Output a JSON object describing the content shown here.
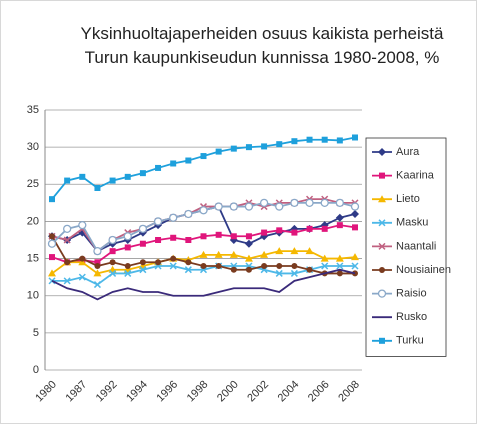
{
  "chart_data": {
    "type": "line",
    "title": "Yksinhuoltajaperheiden osuus kaikista perheistä Turun kaupunkiseudun kunnissa 1980-2008, %",
    "categories": [
      "1980",
      null,
      "1987",
      null,
      "1992",
      null,
      "1994",
      null,
      "1996",
      null,
      "1998",
      null,
      "2000",
      null,
      "2002",
      null,
      "2004",
      null,
      "2006",
      null,
      "2008"
    ],
    "ylim": [
      0,
      35
    ],
    "yticks": [
      0,
      5,
      10,
      15,
      20,
      25,
      30,
      35
    ],
    "grid": true,
    "legend": "right",
    "series": [
      {
        "name": "Aura",
        "color": "#2e3a87",
        "marker": "diamond",
        "values": [
          18,
          17.5,
          18.5,
          16,
          17,
          17.5,
          18.5,
          19.5,
          20.5,
          21,
          21.5,
          22,
          17.5,
          17,
          18,
          18.5,
          19,
          19,
          19.5,
          20.5,
          21
        ]
      },
      {
        "name": "Kaarina",
        "color": "#e0157b",
        "marker": "square",
        "values": [
          15.2,
          14.5,
          14.8,
          14.5,
          16,
          16.5,
          17,
          17.5,
          17.8,
          17.5,
          18,
          18.2,
          18,
          18,
          18.5,
          18.8,
          18.5,
          19,
          19,
          19.5,
          19.2
        ]
      },
      {
        "name": "Lieto",
        "color": "#f5b800",
        "marker": "triangle",
        "values": [
          13,
          14.5,
          14.5,
          13,
          13.5,
          13.5,
          14,
          14.5,
          15,
          14.8,
          15.5,
          15.5,
          15.5,
          15,
          15.5,
          16,
          16,
          16,
          15,
          15,
          15.2
        ]
      },
      {
        "name": "Masku",
        "color": "#4db8e8",
        "marker": "x",
        "values": [
          12,
          12,
          12.5,
          11.5,
          13,
          13,
          13.5,
          14,
          14,
          13.5,
          13.5,
          14,
          14,
          14,
          13.5,
          13,
          13,
          13.5,
          14,
          14,
          14
        ]
      },
      {
        "name": "Naantali",
        "color": "#c06080",
        "marker": "x",
        "values": [
          18,
          17.5,
          19,
          16,
          17.5,
          18.5,
          19,
          20,
          20.5,
          21,
          22,
          22,
          22,
          22.5,
          22,
          22.5,
          22.5,
          23,
          23,
          22.5,
          22.5
        ]
      },
      {
        "name": "Nousiainen",
        "color": "#7a3b1f",
        "marker": "circle",
        "values": [
          18,
          14.5,
          15,
          14,
          14.5,
          14,
          14.5,
          14.5,
          15,
          14.5,
          14,
          14,
          13.5,
          13.5,
          14,
          14,
          14,
          13.5,
          13,
          13,
          13
        ]
      },
      {
        "name": "Raisio",
        "color": "#8aa8c8",
        "marker": "ring",
        "values": [
          17,
          19,
          19.5,
          16,
          17.5,
          18,
          19,
          20,
          20.5,
          21,
          21.5,
          22,
          22,
          22,
          22.5,
          22,
          22.5,
          22.5,
          22.5,
          22.5,
          22
        ]
      },
      {
        "name": "Rusko",
        "color": "#3a2a7a",
        "marker": "none",
        "values": [
          12,
          11,
          10.5,
          9.5,
          10.5,
          11,
          10.5,
          10.5,
          10,
          10,
          10,
          10.5,
          11,
          11,
          11,
          10.5,
          12,
          12.5,
          13,
          13.5,
          13
        ]
      },
      {
        "name": "Turku",
        "color": "#1ea0dc",
        "marker": "square",
        "values": [
          23,
          25.5,
          26,
          24.5,
          25.5,
          26,
          26.5,
          27.2,
          27.8,
          28.2,
          28.8,
          29.4,
          29.8,
          30,
          30.1,
          30.4,
          30.8,
          31,
          31,
          30.9,
          31.3
        ]
      }
    ]
  }
}
